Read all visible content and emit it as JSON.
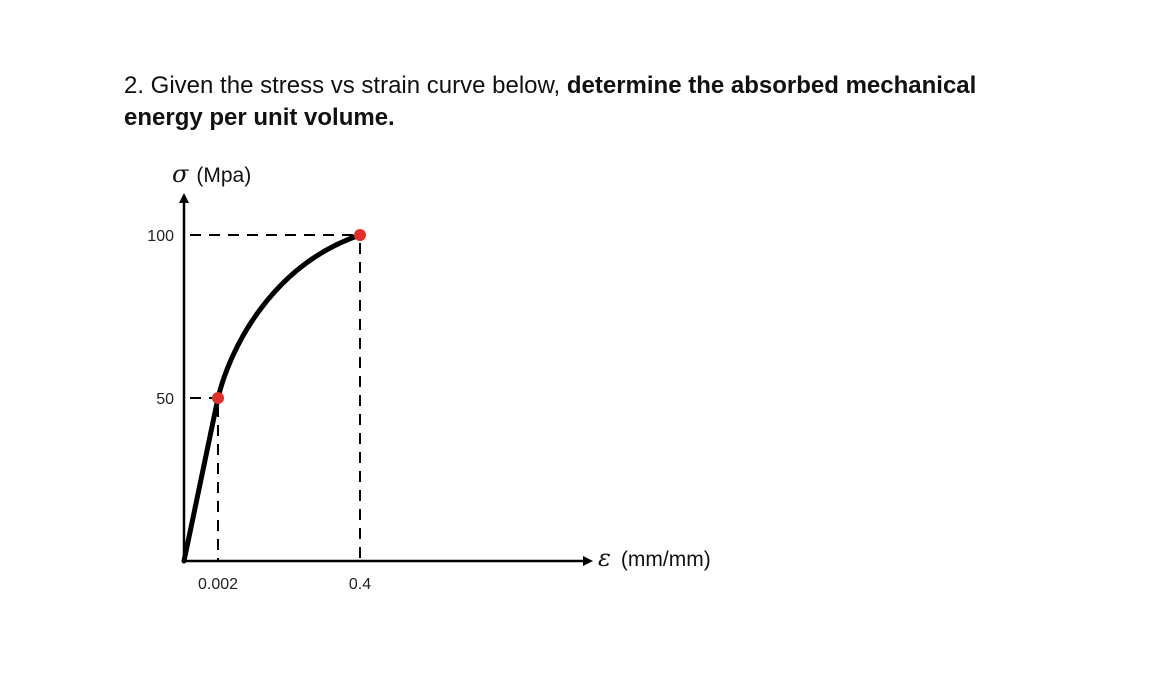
{
  "question": {
    "prefix": "2. Given the stress vs strain curve below, ",
    "bold": "determine the absorbed mechanical energy per unit volume."
  },
  "chart_data": {
    "type": "line",
    "y_axis": {
      "symbol": "σ",
      "unit": "(Mpa)"
    },
    "x_axis": {
      "symbol": "ε",
      "unit": "(mm/mm)"
    },
    "y_ticks": [
      {
        "value": 100,
        "label": "100"
      },
      {
        "value": 50,
        "label": "50"
      }
    ],
    "x_ticks": [
      {
        "value": 0.002,
        "label": "0.002"
      },
      {
        "value": 0.4,
        "label": "0.4"
      }
    ],
    "points": [
      {
        "x": 0,
        "y": 0
      },
      {
        "x": 0.002,
        "y": 50
      },
      {
        "x": 0.4,
        "y": 100
      }
    ],
    "highlighted_points": [
      {
        "x": 0.002,
        "y": 50
      },
      {
        "x": 0.4,
        "y": 100
      }
    ],
    "segments": [
      {
        "kind": "linear",
        "from": {
          "x": 0,
          "y": 0
        },
        "to": {
          "x": 0.002,
          "y": 50
        }
      },
      {
        "kind": "curved",
        "from": {
          "x": 0.002,
          "y": 50
        },
        "to": {
          "x": 0.4,
          "y": 100
        }
      }
    ],
    "grid": false,
    "colors": {
      "curve": "#000000",
      "marker": "#e0302a",
      "axis": "#000000"
    }
  }
}
